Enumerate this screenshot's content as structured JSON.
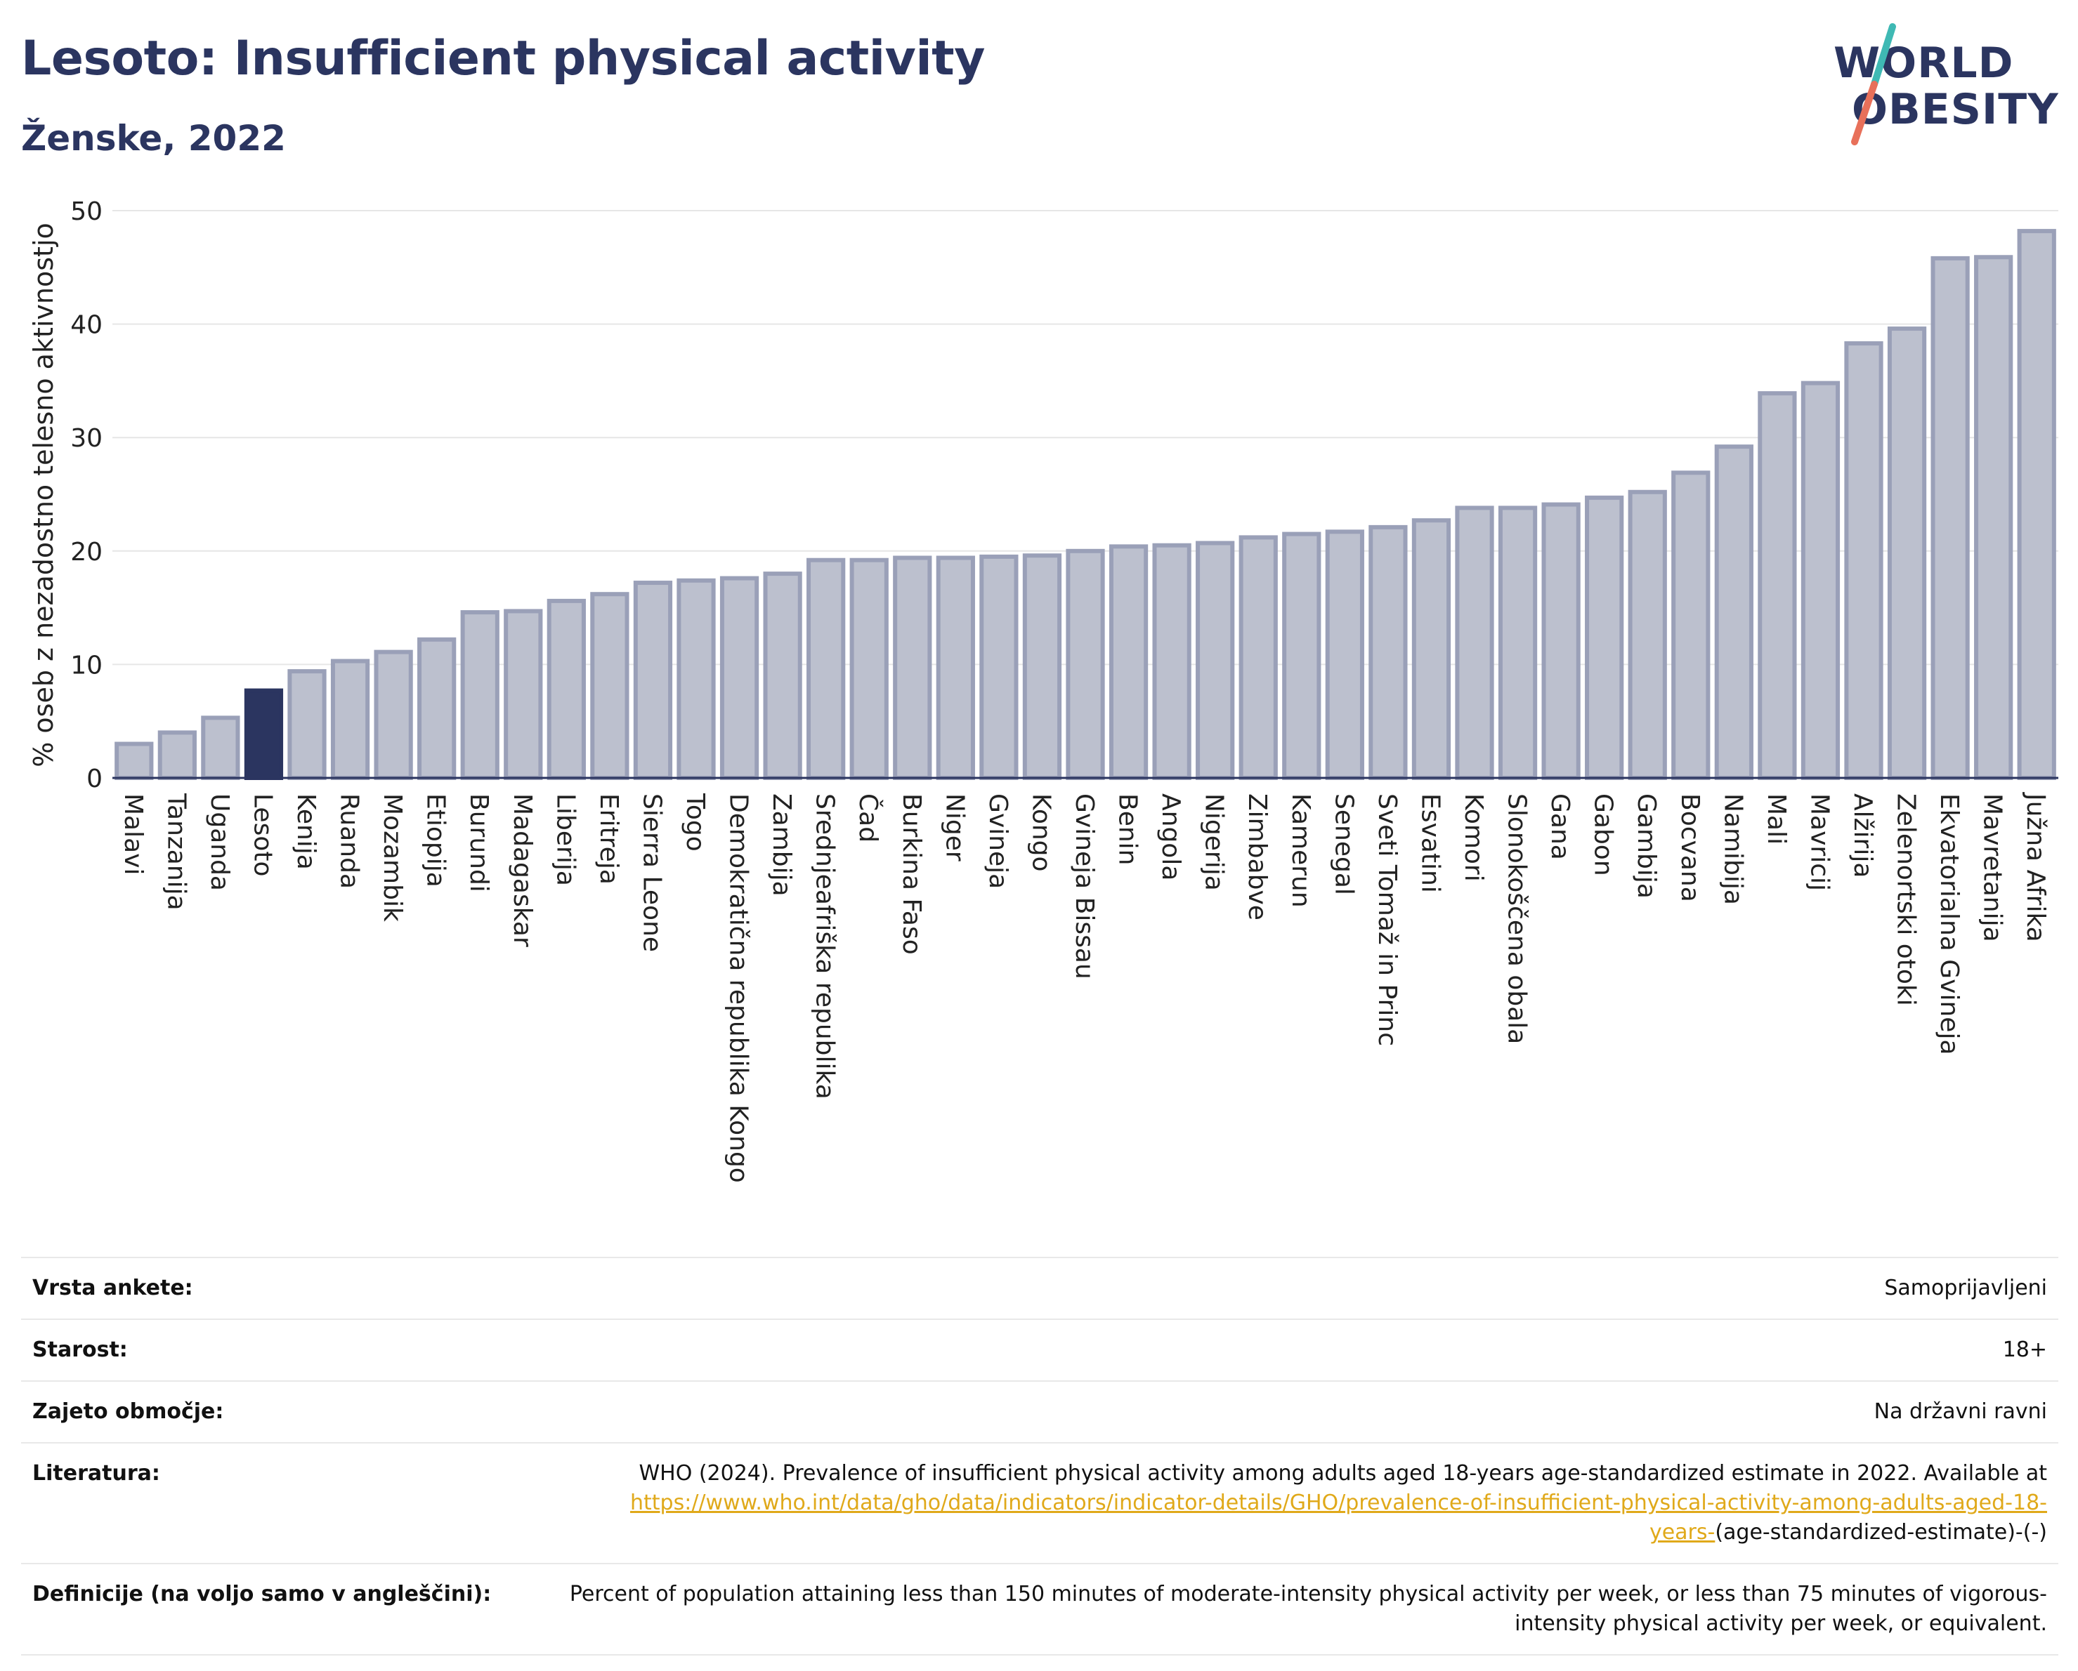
{
  "header": {
    "title": "Lesoto: Insufficient physical activity",
    "subtitle": "Ženske, 2022"
  },
  "logo": {
    "line1": "WORLD",
    "line2": "OBESITY",
    "colors": {
      "text": "#2b3560",
      "slash_top": "#3fb9b4",
      "slash_bottom": "#e8705a"
    }
  },
  "colors": {
    "bar": "#bcc0ce",
    "bar_stroke": "#9aa0b8",
    "highlight": "#2b3560",
    "grid": "#e6e6e6",
    "axis": "#2b3560"
  },
  "chart_data": {
    "type": "bar",
    "ylabel": "% oseb z nezadostno telesno aktivnostjo",
    "xlabel": "",
    "ylim": [
      0,
      50
    ],
    "yticks": [
      0,
      10,
      20,
      30,
      40,
      50
    ],
    "grid": true,
    "highlight": "Lesoto",
    "categories": [
      "Malavi",
      "Tanzanija",
      "Uganda",
      "Lesoto",
      "Kenija",
      "Ruanda",
      "Mozambik",
      "Etiopija",
      "Burundi",
      "Madagaskar",
      "Liberija",
      "Eritreja",
      "Sierra Leone",
      "Togo",
      "Demokratična republika Kongo",
      "Zambija",
      "Srednjeafriška republika",
      "Čad",
      "Burkina Faso",
      "Niger",
      "Gvineja",
      "Kongo",
      "Gvineja Bissau",
      "Benin",
      "Angola",
      "Nigerija",
      "Zimbabve",
      "Kamerun",
      "Senegal",
      "Sveti Tomaž in Princ",
      "Esvatini",
      "Komori",
      "Slonokoščena obala",
      "Gana",
      "Gabon",
      "Gambija",
      "Bocvana",
      "Namibija",
      "Mali",
      "Mavricij",
      "Alžirija",
      "Zelenortski otoki",
      "Ekvatorialna Gvineja",
      "Mavretanija",
      "Južna Afrika"
    ],
    "values": [
      3.0,
      4.0,
      5.3,
      7.7,
      9.4,
      10.3,
      11.1,
      12.2,
      14.6,
      14.7,
      15.6,
      16.2,
      17.2,
      17.4,
      17.6,
      18.0,
      19.2,
      19.2,
      19.4,
      19.4,
      19.5,
      19.6,
      20.0,
      20.4,
      20.5,
      20.7,
      21.2,
      21.5,
      21.7,
      22.1,
      22.7,
      23.8,
      23.8,
      24.1,
      24.7,
      25.2,
      26.9,
      29.2,
      33.9,
      34.8,
      38.3,
      39.6,
      45.8,
      45.9,
      48.2
    ]
  },
  "info": {
    "survey_label": "Vrsta ankete:",
    "survey_value": "Samoprijavljeni",
    "age_label": "Starost:",
    "age_value": "18+",
    "coverage_label": "Zajeto območje:",
    "coverage_value": "Na državni ravni",
    "references_label": "Literatura:",
    "references_text": "WHO (2024). Prevalence of insufficient physical activity among adults aged 18-years age-standardized estimate in 2022. Available at",
    "references_link": "https://www.who.int/data/gho/data/indicators/indicator-details/GHO/prevalence-of-insufficient-physical-activity-among-adults-aged-18-years-",
    "references_suffix": "(age-standardized-estimate)-(-)",
    "definitions_label": "Definicije (na voljo samo v angleščini):",
    "definitions_text": "Percent of population attaining less than 150 minutes of moderate-intensity physical activity per week, or less than 75 minutes of vigorous-intensity physical activity per week, or equivalent."
  }
}
